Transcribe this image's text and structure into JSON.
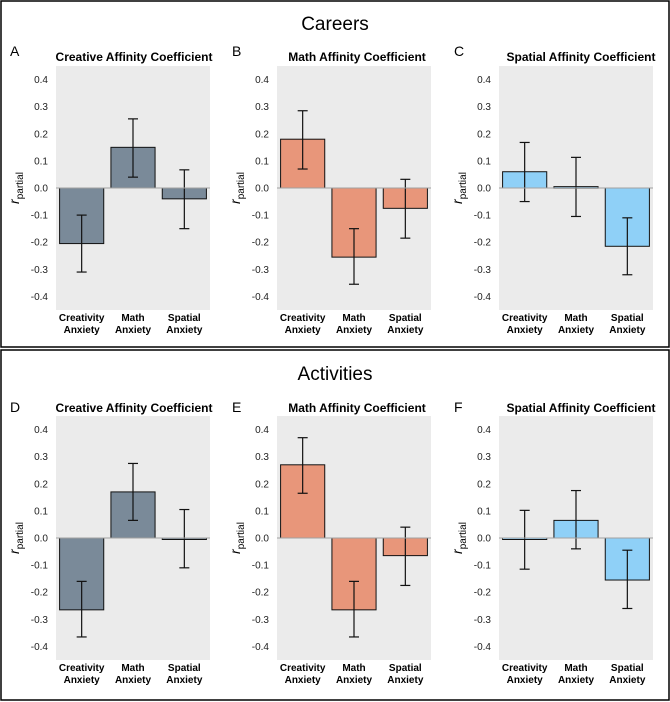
{
  "sections": [
    {
      "title": "Careers",
      "panels": [
        {
          "letter": "A",
          "title": "Creative Affinity Coefficient"
        },
        {
          "letter": "B",
          "title": "Math Affinity Coefficient"
        },
        {
          "letter": "C",
          "title": "Spatial Affinity Coefficient"
        }
      ]
    },
    {
      "title": "Activities",
      "panels": [
        {
          "letter": "D",
          "title": "Creative Affinity Coefficient"
        },
        {
          "letter": "E",
          "title": "Math Affinity Coefficient"
        },
        {
          "letter": "F",
          "title": "Spatial Affinity Coefficient"
        }
      ]
    }
  ],
  "colors": {
    "creative": "#7a8a99",
    "math": "#e8967a",
    "spatial": "#8fd0f7",
    "panel_bg": "#ebebeb",
    "zero_line": "#a0a0a0"
  },
  "chart_data": [
    {
      "type": "bar",
      "section": "Careers",
      "panel": "A",
      "title": "Creative Affinity Coefficient",
      "categories": [
        "Creativity Anxiety",
        "Math Anxiety",
        "Spatial Anxiety"
      ],
      "values": [
        -0.205,
        0.15,
        -0.04
      ],
      "error_low": [
        -0.31,
        0.04,
        -0.15
      ],
      "error_high": [
        -0.1,
        0.255,
        0.067
      ],
      "ylabel": "r partial",
      "ylim": [
        -0.45,
        0.45
      ],
      "yticks": [
        -0.4,
        -0.3,
        -0.2,
        -0.1,
        0.0,
        0.1,
        0.2,
        0.3,
        0.4
      ],
      "ytick_labels": [
        "-0.4",
        "-0.3",
        "-0.2",
        "-0.1",
        "0.0",
        "0.1",
        "0.2",
        "0.3",
        "0.4"
      ]
    },
    {
      "type": "bar",
      "section": "Careers",
      "panel": "B",
      "title": "Math Affinity Coefficient",
      "categories": [
        "Creativity Anxiety",
        "Math Anxiety",
        "Spatial Anxiety"
      ],
      "values": [
        0.18,
        -0.255,
        -0.075
      ],
      "error_low": [
        0.07,
        -0.355,
        -0.185
      ],
      "error_high": [
        0.285,
        -0.15,
        0.032
      ],
      "ylabel": "r partial",
      "ylim": [
        -0.45,
        0.45
      ],
      "yticks": [
        -0.4,
        -0.3,
        -0.2,
        -0.1,
        0.0,
        0.1,
        0.2,
        0.3,
        0.4
      ],
      "ytick_labels": [
        "-0.4",
        "-0.3",
        "-0.2",
        "-0.1",
        "0.0",
        "0.1",
        "0.2",
        "0.3",
        "0.4"
      ]
    },
    {
      "type": "bar",
      "section": "Careers",
      "panel": "C",
      "title": "Spatial Affinity Coefficient",
      "categories": [
        "Creativity Anxiety",
        "Math Anxiety",
        "Spatial Anxiety"
      ],
      "values": [
        0.06,
        0.005,
        -0.215
      ],
      "error_low": [
        -0.05,
        -0.105,
        -0.32
      ],
      "error_high": [
        0.168,
        0.113,
        -0.11
      ],
      "ylabel": "r partial",
      "ylim": [
        -0.45,
        0.45
      ],
      "yticks": [
        -0.4,
        -0.3,
        -0.2,
        -0.1,
        0.0,
        0.1,
        0.2,
        0.3,
        0.4
      ],
      "ytick_labels": [
        "-0.4",
        "-0.3",
        "-0.2",
        "-0.1",
        "0.0",
        "0.1",
        "0.2",
        "0.3",
        "0.4"
      ]
    },
    {
      "type": "bar",
      "section": "Activities",
      "panel": "D",
      "title": "Creative Affinity Coefficient",
      "categories": [
        "Creativity Anxiety",
        "Math Anxiety",
        "Spatial Anxiety"
      ],
      "values": [
        -0.265,
        0.17,
        -0.005
      ],
      "error_low": [
        -0.365,
        0.065,
        -0.11
      ],
      "error_high": [
        -0.16,
        0.275,
        0.105
      ],
      "ylabel": "r partial",
      "ylim": [
        -0.45,
        0.45
      ],
      "yticks": [
        -0.4,
        -0.3,
        -0.2,
        -0.1,
        0.0,
        0.1,
        0.2,
        0.3,
        0.4
      ],
      "ytick_labels": [
        "-0.4",
        "-0.3",
        "-0.2",
        "-0.1",
        "0.0",
        "0.1",
        "0.2",
        "0.3",
        "0.4"
      ]
    },
    {
      "type": "bar",
      "section": "Activities",
      "panel": "E",
      "title": "Math Affinity Coefficient",
      "categories": [
        "Creativity Anxiety",
        "Math Anxiety",
        "Spatial Anxiety"
      ],
      "values": [
        0.27,
        -0.265,
        -0.065
      ],
      "error_low": [
        0.165,
        -0.365,
        -0.175
      ],
      "error_high": [
        0.37,
        -0.16,
        0.04
      ],
      "ylabel": "r partial",
      "ylim": [
        -0.45,
        0.45
      ],
      "yticks": [
        -0.4,
        -0.3,
        -0.2,
        -0.1,
        0.0,
        0.1,
        0.2,
        0.3,
        0.4
      ],
      "ytick_labels": [
        "-0.4",
        "-0.3",
        "-0.2",
        "-0.1",
        "0.0",
        "0.1",
        "0.2",
        "0.3",
        "0.4"
      ]
    },
    {
      "type": "bar",
      "section": "Activities",
      "panel": "F",
      "title": "Spatial Affinity Coefficient",
      "categories": [
        "Creativity Anxiety",
        "Math Anxiety",
        "Spatial Anxiety"
      ],
      "values": [
        -0.005,
        0.065,
        -0.155
      ],
      "error_low": [
        -0.115,
        -0.04,
        -0.26
      ],
      "error_high": [
        0.102,
        0.175,
        -0.045
      ],
      "ylabel": "r partial",
      "ylim": [
        -0.45,
        0.45
      ],
      "yticks": [
        -0.4,
        -0.3,
        -0.2,
        -0.1,
        0.0,
        0.1,
        0.2,
        0.3,
        0.4
      ],
      "ytick_labels": [
        "-0.4",
        "-0.3",
        "-0.2",
        "-0.1",
        "0.0",
        "0.1",
        "0.2",
        "0.3",
        "0.4"
      ]
    }
  ]
}
